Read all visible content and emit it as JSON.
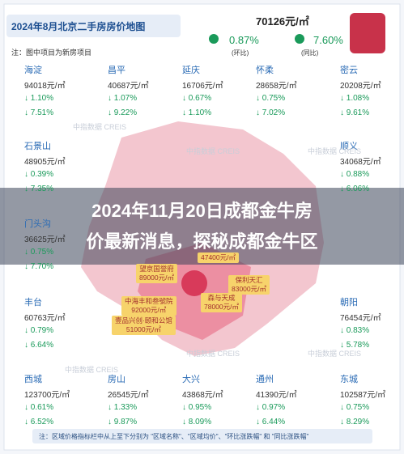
{
  "header": {
    "title": "2024年8月北京二手房房价地图",
    "note": "注：图中项目为新房项目"
  },
  "summary": {
    "price": "70126元/㎡",
    "mom": "0.87%",
    "mom_label": "(环比)",
    "yoy": "7.60%",
    "yoy_label": "(同比)"
  },
  "districts": [
    {
      "name": "海淀",
      "price": "94018元/㎡",
      "mom": "↓ 1.10%",
      "yoy": "↓ 7.51%"
    },
    {
      "name": "昌平",
      "price": "40687元/㎡",
      "mom": "↓ 1.07%",
      "yoy": "↓ 9.22%"
    },
    {
      "name": "延庆",
      "price": "16706元/㎡",
      "mom": "↓ 0.67%",
      "yoy": "↓ 1.10%"
    },
    {
      "name": "怀柔",
      "price": "28658元/㎡",
      "mom": "↓ 0.75%",
      "yoy": "↓ 7.02%"
    },
    {
      "name": "密云",
      "price": "20208元/㎡",
      "mom": "↓ 1.08%",
      "yoy": "↓ 9.61%"
    },
    {
      "name": "石景山",
      "price": "48905元/㎡",
      "mom": "↓ 0.39%",
      "yoy": "↓ 7.35%"
    },
    {
      "name": "顺义",
      "price": "34068元/㎡",
      "mom": "↓ 0.88%",
      "yoy": "↓ 6.06%"
    },
    {
      "name": "门头沟",
      "price": "36625元/㎡",
      "mom": "↓ 0.75%",
      "yoy": "↓ 7.70%"
    },
    {
      "name": "丰台",
      "price": "60763元/㎡",
      "mom": "↓ 0.79%",
      "yoy": "↓ 6.64%"
    },
    {
      "name": "朝阳",
      "price": "76454元/㎡",
      "mom": "↓ 0.83%",
      "yoy": "↓ 5.78%"
    },
    {
      "name": "西城",
      "price": "123700元/㎡",
      "mom": "↓ 0.61%",
      "yoy": "↓ 6.52%"
    },
    {
      "name": "房山",
      "price": "26545元/㎡",
      "mom": "↓ 1.33%",
      "yoy": "↓ 9.87%"
    },
    {
      "name": "大兴",
      "price": "43868元/㎡",
      "mom": "↓ 0.95%",
      "yoy": "↓ 8.09%"
    },
    {
      "name": "通州",
      "price": "41390元/㎡",
      "mom": "↓ 0.97%",
      "yoy": "↓ 6.44%"
    },
    {
      "name": "东城",
      "price": "102587元/㎡",
      "mom": "↓ 0.75%",
      "yoy": "↓ 8.29%"
    }
  ],
  "projects": [
    {
      "name": "望京国誉府",
      "price": "89000元/㎡"
    },
    {
      "name": "保利天汇",
      "price": "83000元/㎡"
    },
    {
      "name": "中海丰和叁號院",
      "price": "92000元/㎡"
    },
    {
      "name": "森与天成",
      "price": "78000元/㎡"
    },
    {
      "name": "壹品兴创·颐和公馆",
      "price": "51000元/㎡"
    },
    {
      "name": "",
      "price": "47400元/㎡"
    }
  ],
  "watermark": "中指数据 CREIS",
  "footer": "注：区域价格指标栏中从上至下分别为 \"区域名称\"、\"区域均价\"、\"环比涨跌幅\" 和 \"同比涨跌幅\"",
  "overlay": {
    "line1": "2024年11月20日成都金牛房",
    "line2": "价最新消息，探秘成都金牛区"
  }
}
